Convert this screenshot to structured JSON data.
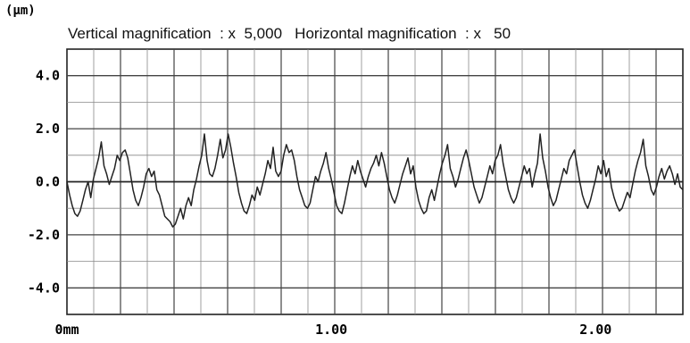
{
  "chart_data": {
    "type": "line",
    "unit_label": "(μm)",
    "subtitle": "Vertical magnification  : x  5,000   Horizontal magnification  : x   50",
    "yticks": [
      {
        "value": 4.0,
        "label": "4.0"
      },
      {
        "value": 2.0,
        "label": "2.0"
      },
      {
        "value": 0.0,
        "label": "0.0"
      },
      {
        "value": -2.0,
        "label": "-2.0"
      },
      {
        "value": -4.0,
        "label": "-4.0"
      }
    ],
    "xticks": [
      {
        "value": 0,
        "label": "0mm"
      },
      {
        "value": 1.0,
        "label": "1.00"
      },
      {
        "value": 2.0,
        "label": "2.00"
      }
    ],
    "xlim": [
      0,
      2.33
    ],
    "ylim": [
      -5,
      5
    ],
    "grid": true,
    "series": [
      {
        "color": "#222222",
        "points": [
          [
            0.0,
            0.0
          ],
          [
            0.01,
            -0.5
          ],
          [
            0.02,
            -0.9
          ],
          [
            0.03,
            -1.2
          ],
          [
            0.04,
            -1.3
          ],
          [
            0.05,
            -1.1
          ],
          [
            0.06,
            -0.7
          ],
          [
            0.07,
            -0.3
          ],
          [
            0.08,
            0.0
          ],
          [
            0.09,
            -0.6
          ],
          [
            0.1,
            0.1
          ],
          [
            0.11,
            0.5
          ],
          [
            0.12,
            0.9
          ],
          [
            0.13,
            1.5
          ],
          [
            0.14,
            0.6
          ],
          [
            0.15,
            0.3
          ],
          [
            0.16,
            -0.1
          ],
          [
            0.17,
            0.2
          ],
          [
            0.18,
            0.5
          ],
          [
            0.19,
            1.0
          ],
          [
            0.2,
            0.8
          ],
          [
            0.21,
            1.1
          ],
          [
            0.22,
            1.2
          ],
          [
            0.23,
            0.9
          ],
          [
            0.24,
            0.3
          ],
          [
            0.25,
            -0.3
          ],
          [
            0.26,
            -0.7
          ],
          [
            0.27,
            -0.9
          ],
          [
            0.28,
            -0.6
          ],
          [
            0.29,
            -0.2
          ],
          [
            0.3,
            0.3
          ],
          [
            0.31,
            0.5
          ],
          [
            0.32,
            0.2
          ],
          [
            0.33,
            0.4
          ],
          [
            0.34,
            -0.3
          ],
          [
            0.35,
            -0.5
          ],
          [
            0.36,
            -0.9
          ],
          [
            0.37,
            -1.3
          ],
          [
            0.38,
            -1.4
          ],
          [
            0.39,
            -1.5
          ],
          [
            0.4,
            -1.7
          ],
          [
            0.41,
            -1.6
          ],
          [
            0.42,
            -1.3
          ],
          [
            0.43,
            -1.0
          ],
          [
            0.44,
            -1.4
          ],
          [
            0.45,
            -0.9
          ],
          [
            0.46,
            -0.6
          ],
          [
            0.47,
            -0.9
          ],
          [
            0.48,
            -0.3
          ],
          [
            0.49,
            0.1
          ],
          [
            0.5,
            0.6
          ],
          [
            0.51,
            1.0
          ],
          [
            0.52,
            1.8
          ],
          [
            0.53,
            0.8
          ],
          [
            0.54,
            0.3
          ],
          [
            0.55,
            0.2
          ],
          [
            0.56,
            0.5
          ],
          [
            0.57,
            1.0
          ],
          [
            0.58,
            1.6
          ],
          [
            0.59,
            0.9
          ],
          [
            0.6,
            1.2
          ],
          [
            0.61,
            1.8
          ],
          [
            0.62,
            1.3
          ],
          [
            0.63,
            0.7
          ],
          [
            0.64,
            0.2
          ],
          [
            0.65,
            -0.4
          ],
          [
            0.66,
            -0.8
          ],
          [
            0.67,
            -1.1
          ],
          [
            0.68,
            -1.2
          ],
          [
            0.69,
            -0.9
          ],
          [
            0.7,
            -0.5
          ],
          [
            0.71,
            -0.7
          ],
          [
            0.72,
            -0.2
          ],
          [
            0.73,
            -0.5
          ],
          [
            0.74,
            -0.1
          ],
          [
            0.75,
            0.3
          ],
          [
            0.76,
            0.8
          ],
          [
            0.77,
            0.5
          ],
          [
            0.78,
            1.3
          ],
          [
            0.79,
            0.4
          ],
          [
            0.8,
            0.2
          ],
          [
            0.81,
            0.4
          ],
          [
            0.82,
            1.0
          ],
          [
            0.83,
            1.4
          ],
          [
            0.84,
            1.1
          ],
          [
            0.85,
            1.2
          ],
          [
            0.86,
            0.8
          ],
          [
            0.87,
            0.2
          ],
          [
            0.88,
            -0.3
          ],
          [
            0.89,
            -0.6
          ],
          [
            0.9,
            -0.9
          ],
          [
            0.91,
            -1.0
          ],
          [
            0.92,
            -0.8
          ],
          [
            0.93,
            -0.3
          ],
          [
            0.94,
            0.2
          ],
          [
            0.95,
            0.0
          ],
          [
            0.96,
            0.4
          ],
          [
            0.97,
            0.7
          ],
          [
            0.98,
            1.1
          ],
          [
            0.99,
            0.5
          ],
          [
            1.0,
            0.1
          ],
          [
            1.01,
            -0.4
          ],
          [
            1.02,
            -0.9
          ],
          [
            1.03,
            -1.1
          ],
          [
            1.04,
            -1.2
          ],
          [
            1.05,
            -0.8
          ],
          [
            1.06,
            -0.3
          ],
          [
            1.07,
            0.2
          ],
          [
            1.08,
            0.6
          ],
          [
            1.09,
            0.3
          ],
          [
            1.1,
            0.8
          ],
          [
            1.11,
            0.4
          ],
          [
            1.12,
            0.1
          ],
          [
            1.13,
            -0.2
          ],
          [
            1.14,
            0.2
          ],
          [
            1.15,
            0.5
          ],
          [
            1.16,
            0.7
          ],
          [
            1.17,
            1.0
          ],
          [
            1.18,
            0.6
          ],
          [
            1.19,
            1.1
          ],
          [
            1.2,
            0.7
          ],
          [
            1.21,
            0.2
          ],
          [
            1.22,
            -0.3
          ],
          [
            1.23,
            -0.6
          ],
          [
            1.24,
            -0.8
          ],
          [
            1.25,
            -0.5
          ],
          [
            1.26,
            -0.1
          ],
          [
            1.27,
            0.3
          ],
          [
            1.28,
            0.6
          ],
          [
            1.29,
            0.9
          ],
          [
            1.3,
            0.3
          ],
          [
            1.31,
            0.6
          ],
          [
            1.32,
            -0.2
          ],
          [
            1.33,
            -0.7
          ],
          [
            1.34,
            -1.0
          ],
          [
            1.35,
            -1.2
          ],
          [
            1.36,
            -1.1
          ],
          [
            1.37,
            -0.6
          ],
          [
            1.38,
            -0.3
          ],
          [
            1.39,
            -0.7
          ],
          [
            1.4,
            -0.2
          ],
          [
            1.41,
            0.3
          ],
          [
            1.42,
            0.7
          ],
          [
            1.43,
            1.0
          ],
          [
            1.44,
            1.4
          ],
          [
            1.45,
            0.5
          ],
          [
            1.46,
            0.2
          ],
          [
            1.47,
            -0.2
          ],
          [
            1.48,
            0.1
          ],
          [
            1.49,
            0.5
          ],
          [
            1.5,
            0.9
          ],
          [
            1.51,
            1.2
          ],
          [
            1.52,
            0.8
          ],
          [
            1.53,
            0.3
          ],
          [
            1.54,
            -0.2
          ],
          [
            1.55,
            -0.5
          ],
          [
            1.56,
            -0.8
          ],
          [
            1.57,
            -0.6
          ],
          [
            1.58,
            -0.2
          ],
          [
            1.59,
            0.2
          ],
          [
            1.6,
            0.6
          ],
          [
            1.61,
            0.3
          ],
          [
            1.62,
            0.8
          ],
          [
            1.63,
            1.0
          ],
          [
            1.64,
            1.4
          ],
          [
            1.65,
            0.7
          ],
          [
            1.66,
            0.2
          ],
          [
            1.67,
            -0.3
          ],
          [
            1.68,
            -0.6
          ],
          [
            1.69,
            -0.8
          ],
          [
            1.7,
            -0.6
          ],
          [
            1.71,
            -0.2
          ],
          [
            1.72,
            0.2
          ],
          [
            1.73,
            0.6
          ],
          [
            1.74,
            0.3
          ],
          [
            1.75,
            0.5
          ],
          [
            1.76,
            -0.2
          ],
          [
            1.77,
            0.3
          ],
          [
            1.78,
            0.7
          ],
          [
            1.79,
            1.8
          ],
          [
            1.8,
            0.9
          ],
          [
            1.81,
            0.4
          ],
          [
            1.82,
            -0.2
          ],
          [
            1.83,
            -0.6
          ],
          [
            1.84,
            -0.9
          ],
          [
            1.85,
            -0.7
          ],
          [
            1.86,
            -0.3
          ],
          [
            1.87,
            0.1
          ],
          [
            1.88,
            0.5
          ],
          [
            1.89,
            0.3
          ],
          [
            1.9,
            0.8
          ],
          [
            1.91,
            1.0
          ],
          [
            1.92,
            1.2
          ],
          [
            1.93,
            0.6
          ],
          [
            1.94,
            0.0
          ],
          [
            1.95,
            -0.5
          ],
          [
            1.96,
            -0.8
          ],
          [
            1.97,
            -1.0
          ],
          [
            1.98,
            -0.7
          ],
          [
            1.99,
            -0.3
          ],
          [
            2.0,
            0.1
          ],
          [
            2.01,
            0.6
          ],
          [
            2.02,
            0.3
          ],
          [
            2.03,
            0.8
          ],
          [
            2.04,
            0.2
          ],
          [
            2.05,
            0.5
          ],
          [
            2.06,
            -0.2
          ],
          [
            2.07,
            -0.6
          ],
          [
            2.08,
            -0.9
          ],
          [
            2.09,
            -1.1
          ],
          [
            2.1,
            -1.0
          ],
          [
            2.11,
            -0.7
          ],
          [
            2.12,
            -0.4
          ],
          [
            2.13,
            -0.6
          ],
          [
            2.14,
            -0.1
          ],
          [
            2.15,
            0.4
          ],
          [
            2.16,
            0.8
          ],
          [
            2.17,
            1.1
          ],
          [
            2.18,
            1.6
          ],
          [
            2.19,
            0.6
          ],
          [
            2.2,
            0.2
          ],
          [
            2.21,
            -0.3
          ],
          [
            2.22,
            -0.5
          ],
          [
            2.23,
            -0.2
          ],
          [
            2.24,
            0.2
          ],
          [
            2.25,
            0.5
          ],
          [
            2.26,
            0.1
          ],
          [
            2.27,
            0.4
          ],
          [
            2.28,
            0.6
          ],
          [
            2.29,
            0.3
          ],
          [
            2.3,
            -0.1
          ],
          [
            2.31,
            0.3
          ],
          [
            2.32,
            -0.2
          ],
          [
            2.33,
            -0.3
          ]
        ]
      }
    ]
  }
}
